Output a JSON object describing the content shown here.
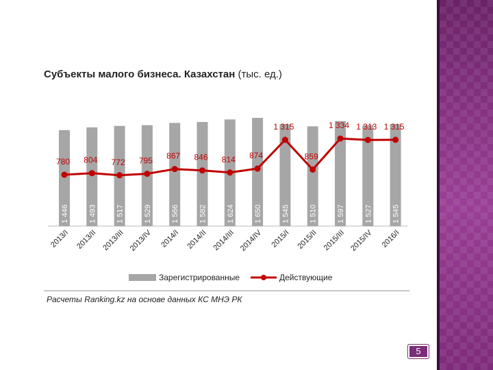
{
  "title": "Субъекты малого бизнеса. Казахстан",
  "title_unit": "(тыс. ед.)",
  "source": "Расчеты Ranking.kz на основе данных КС МНЭ РК",
  "page_number": "5",
  "colors": {
    "bar": "#a6a6a6",
    "line": "#c00000",
    "accent": "#7a2d78"
  },
  "chart_data": {
    "type": "bar",
    "categories": [
      "2013/I",
      "2013/II",
      "2013/III",
      "2013/IV",
      "2014/I",
      "2014/II",
      "2014/III",
      "2014/IV",
      "2015/I",
      "2015/II",
      "2015/III",
      "2015/IV",
      "2016/I"
    ],
    "series": [
      {
        "name": "Зарегистрированные",
        "type": "bar",
        "values": [
          1446,
          1493,
          1517,
          1529,
          1566,
          1582,
          1624,
          1650,
          1545,
          1510,
          1597,
          1527,
          1545
        ],
        "labels": [
          "1 446",
          "1 493",
          "1 517",
          "1 529",
          "1 566",
          "1 582",
          "1 624",
          "1 650",
          "1 545",
          "1 510",
          "1 597",
          "1 527",
          "1 545"
        ]
      },
      {
        "name": "Действующие",
        "type": "line",
        "values": [
          780,
          804,
          772,
          795,
          867,
          846,
          814,
          874,
          1315,
          859,
          1334,
          1313,
          1315
        ],
        "labels": [
          "780",
          "804",
          "772",
          "795",
          "867",
          "846",
          "814",
          "874",
          "1 315",
          "859",
          "1 334",
          "1 313",
          "1 315"
        ]
      }
    ],
    "legend_position": "bottom",
    "grid": false
  }
}
